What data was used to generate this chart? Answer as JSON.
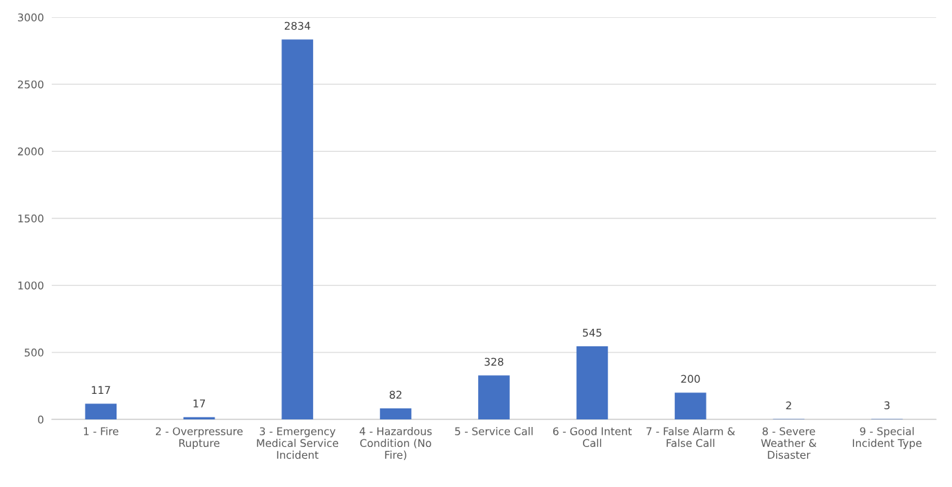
{
  "chart_data": {
    "type": "bar",
    "categories": [
      "1 - Fire",
      "2 - Overpressure Rupture",
      "3 - Emergency Medical Service Incident",
      "4 - Hazardous Condition (No Fire)",
      "5 - Service Call",
      "6 - Good Intent Call",
      "7 - False Alarm & False Call",
      "8 - Severe Weather & Disaster",
      "9 - Special Incident Type"
    ],
    "values": [
      117,
      17,
      2834,
      82,
      328,
      545,
      200,
      2,
      3
    ],
    "color": "#4472c4",
    "ylim": [
      0,
      3000
    ],
    "yticks": [
      0,
      500,
      1000,
      1500,
      2000,
      2500,
      3000
    ],
    "grid": "y",
    "data_labels": true
  }
}
